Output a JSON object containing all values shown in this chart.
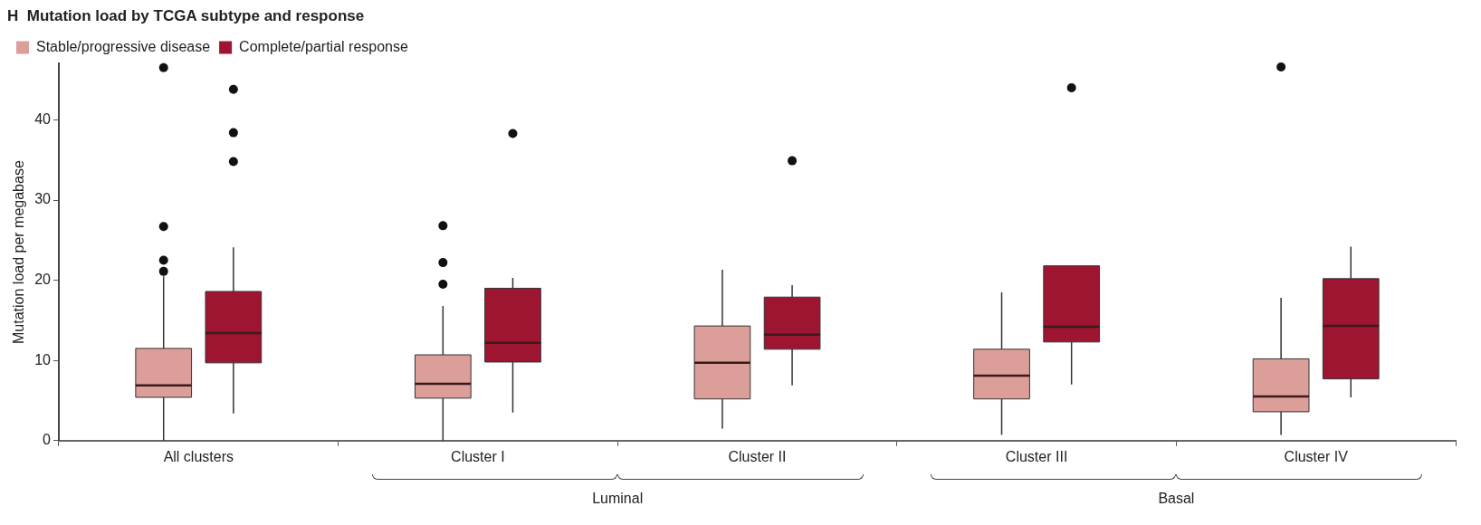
{
  "chart_data": {
    "type": "box",
    "title": "H  Mutation load by TCGA subtype and response",
    "ylabel": "Mutation load per megabase",
    "categories": [
      "All clusters",
      "Cluster I",
      "Cluster II",
      "Cluster III",
      "Cluster IV"
    ],
    "series": [
      {
        "name": "Stable/progressive disease",
        "color": "#dc9e98",
        "boxes": [
          {
            "low": 0,
            "q1": 5.4,
            "median": 6.9,
            "q3": 11.5,
            "high": 20.5,
            "outliers": [
              46.5,
              26.7,
              22.5,
              21.1
            ]
          },
          {
            "low": 0,
            "q1": 5.3,
            "median": 7.1,
            "q3": 10.7,
            "high": 16.8,
            "outliers": [
              26.8,
              22.2,
              19.5
            ]
          },
          {
            "low": 1.5,
            "q1": 5.2,
            "median": 9.7,
            "q3": 14.3,
            "high": 21.3
          },
          {
            "low": 0.7,
            "q1": 5.2,
            "median": 8.1,
            "q3": 11.4,
            "high": 18.5
          },
          {
            "low": 0.7,
            "q1": 3.6,
            "median": 5.5,
            "q3": 10.2,
            "high": 17.8,
            "outliers": [
              46.6
            ]
          }
        ]
      },
      {
        "name": "Complete/partial response",
        "color": "#9e1532",
        "boxes": [
          {
            "low": 3.4,
            "q1": 9.7,
            "median": 13.4,
            "q3": 18.6,
            "high": 24.1,
            "outliers": [
              43.8,
              38.4,
              34.8
            ]
          },
          {
            "low": 3.5,
            "q1": 9.8,
            "median": 12.2,
            "q3": 19,
            "high": 20.3,
            "outliers": [
              38.3
            ]
          },
          {
            "low": 6.9,
            "q1": 11.4,
            "median": 13.2,
            "q3": 17.9,
            "high": 19.4,
            "outliers": [
              34.9
            ]
          },
          {
            "low": 7,
            "q1": 12.3,
            "median": 14.2,
            "q3": 21.8,
            "high": 21.8,
            "outliers": [
              44
            ]
          },
          {
            "low": 5.4,
            "q1": 7.7,
            "median": 14.3,
            "q3": 20.2,
            "high": 24.2
          }
        ]
      }
    ],
    "ylim": [
      0,
      47
    ],
    "yticks": [
      0,
      10,
      20,
      30,
      40
    ],
    "grid": false,
    "legend": "top left",
    "annotations": [
      "Luminal",
      "Basal"
    ]
  }
}
